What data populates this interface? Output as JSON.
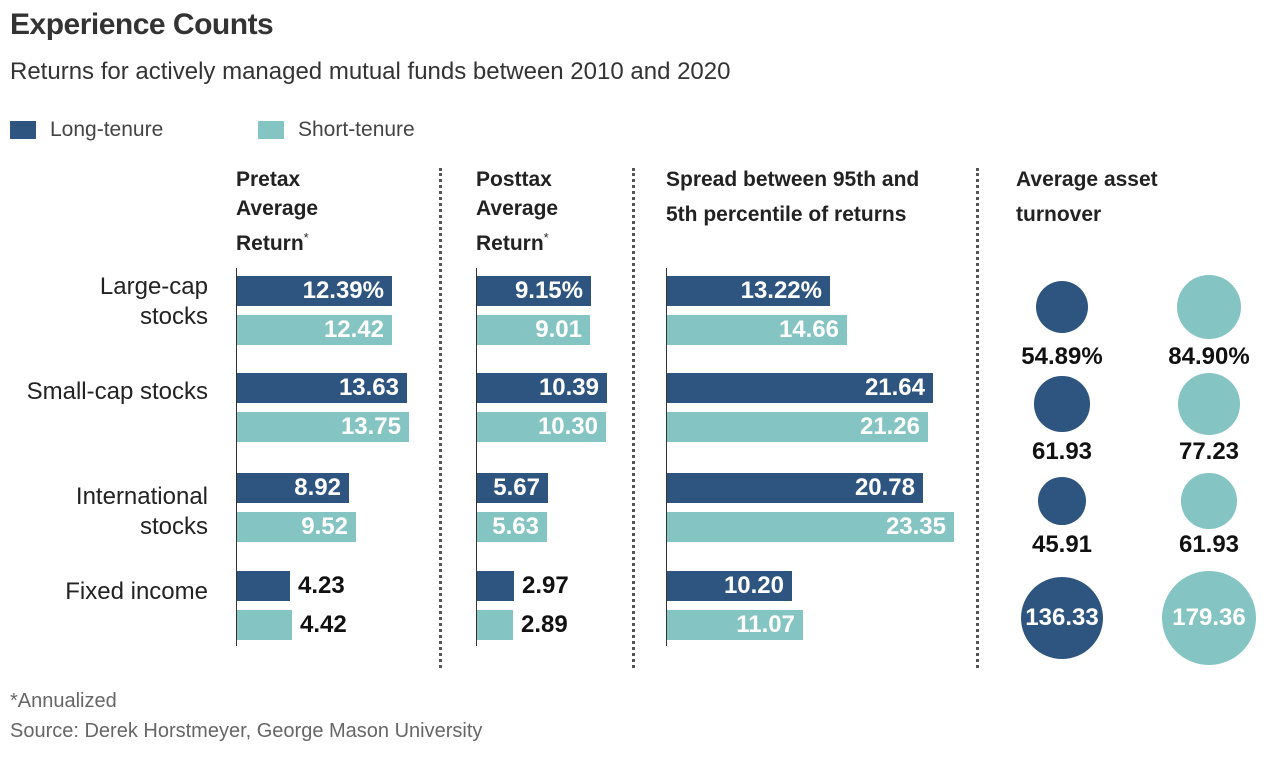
{
  "title": "Experience Counts",
  "subtitle": "Returns for actively managed mutual funds between 2010 and 2020",
  "legend": [
    {
      "label": "Long-tenure",
      "color": "#2e5580"
    },
    {
      "label": "Short-tenure",
      "color": "#84c4c2"
    }
  ],
  "columns": [
    {
      "heading": "Pretax\nAverage\nReturn",
      "marker": "*"
    },
    {
      "heading": "Posttax\nAverage\nReturn",
      "marker": "*"
    },
    {
      "heading": "Spread between 95th and\n5th percentile of returns",
      "marker": ""
    },
    {
      "heading": "Average asset\nturnover",
      "marker": ""
    }
  ],
  "footnote": "*Annualized",
  "source": "Source: Derek Horstmeyer, George Mason University",
  "chart_data": [
    {
      "type": "bar",
      "title": "Pretax Average Return*",
      "categories": [
        "Large-cap\nstocks",
        "Small-cap stocks",
        "International\nstocks",
        "Fixed income"
      ],
      "series": [
        {
          "name": "Long-tenure",
          "values": [
            12.39,
            13.63,
            8.92,
            4.23
          ],
          "labels": [
            "12.39%",
            "13.63",
            "8.92",
            "4.23"
          ]
        },
        {
          "name": "Short-tenure",
          "values": [
            12.42,
            13.75,
            9.52,
            4.42
          ],
          "labels": [
            "12.42",
            "13.75",
            "9.52",
            "4.42"
          ]
        }
      ]
    },
    {
      "type": "bar",
      "title": "Posttax Average Return*",
      "categories": [
        "Large-cap\nstocks",
        "Small-cap stocks",
        "International\nstocks",
        "Fixed income"
      ],
      "series": [
        {
          "name": "Long-tenure",
          "values": [
            9.15,
            10.39,
            5.67,
            2.97
          ],
          "labels": [
            "9.15%",
            "10.39",
            "5.67",
            "2.97"
          ]
        },
        {
          "name": "Short-tenure",
          "values": [
            9.01,
            10.3,
            5.63,
            2.89
          ],
          "labels": [
            "9.01",
            "10.30",
            "5.63",
            "2.89"
          ]
        }
      ]
    },
    {
      "type": "bar",
      "title": "Spread between 95th and 5th percentile of returns",
      "categories": [
        "Large-cap\nstocks",
        "Small-cap stocks",
        "International\nstocks",
        "Fixed income"
      ],
      "series": [
        {
          "name": "Long-tenure",
          "values": [
            13.22,
            21.64,
            20.78,
            10.2
          ],
          "labels": [
            "13.22%",
            "21.64",
            "20.78",
            "10.20"
          ]
        },
        {
          "name": "Short-tenure",
          "values": [
            14.66,
            21.26,
            23.35,
            11.07
          ],
          "labels": [
            "14.66",
            "21.26",
            "23.35",
            "11.07"
          ]
        }
      ]
    },
    {
      "type": "bubble",
      "title": "Average asset turnover",
      "categories": [
        "Large-cap\nstocks",
        "Small-cap stocks",
        "International\nstocks",
        "Fixed income"
      ],
      "series": [
        {
          "name": "Long-tenure",
          "values": [
            54.89,
            61.93,
            45.91,
            136.33
          ],
          "labels": [
            "54.89%",
            "61.93",
            "45.91",
            "136.33"
          ]
        },
        {
          "name": "Short-tenure",
          "values": [
            84.9,
            77.23,
            61.93,
            179.36
          ],
          "labels": [
            "84.90%",
            "77.23",
            "61.93",
            "179.36"
          ]
        }
      ]
    }
  ]
}
